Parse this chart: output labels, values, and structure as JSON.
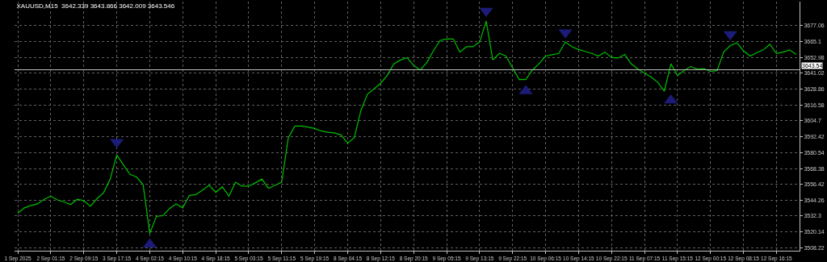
{
  "chart_data": {
    "type": "line",
    "title": "XAUUSD,M15  3642.339 3643.866 3642.009 3643.546",
    "grid": true,
    "marker": "none",
    "line_style": "solid",
    "categories": [
      "1 Sep 2025",
      null,
      null,
      null,
      null,
      "2 Sep 01:15",
      null,
      null,
      null,
      null,
      "2 Sep 09:15",
      null,
      null,
      null,
      null,
      "3 Sep 17:15",
      null,
      null,
      null,
      null,
      "4 Sep 02:15",
      null,
      null,
      null,
      null,
      "4 Sep 10:15",
      null,
      null,
      null,
      null,
      "4 Sep 18:15",
      null,
      null,
      null,
      null,
      "5 Sep 03:15",
      null,
      null,
      null,
      null,
      "5 Sep 11:15",
      null,
      null,
      null,
      null,
      "5 Sep 19:15",
      null,
      null,
      null,
      null,
      "8 Sep 04:15",
      null,
      null,
      null,
      null,
      "8 Sep 12:15",
      null,
      null,
      null,
      null,
      "8 Sep 20:15",
      null,
      null,
      null,
      null,
      "9 Sep 05:15",
      null,
      null,
      null,
      null,
      "9 Sep 13:15",
      null,
      null,
      null,
      null,
      "9 Sep 22:15",
      null,
      null,
      null,
      null,
      "10 Sep 06:15",
      null,
      null,
      null,
      null,
      "10 Sep 14:15",
      null,
      null,
      null,
      null,
      "10 Sep 22:15",
      null,
      null,
      null,
      null,
      "11 Sep 07:15",
      null,
      null,
      null,
      null,
      "11 Sep 15:15",
      null,
      null,
      null,
      null,
      "12 Sep 00:15",
      null,
      null,
      null,
      null,
      "12 Sep 08:15",
      null,
      null,
      null,
      null,
      "12 Sep 16:15",
      null,
      null,
      null
    ],
    "ylim": [
      3505.9,
      3695.4
    ],
    "yticks": [
      3508.22,
      3520.14,
      3532.3,
      3544.26,
      3556.42,
      3568.38,
      3580.54,
      3592.42,
      3604.7,
      3616.58,
      3628.86,
      3641.02,
      3652.98,
      3665.1,
      3677.06
    ],
    "ref_lines": [
      {
        "axis": "y",
        "value": 3643.54,
        "label": "3643.54",
        "color": "#c0c0c0"
      }
    ],
    "series": [
      {
        "color": "#00c000",
        "values": [
          3534.4,
          3538.5,
          3540.3,
          3541.5,
          3545.0,
          3547.4,
          3544.5,
          3543.0,
          3541.0,
          3545.0,
          3544.0,
          3539.7,
          3545.6,
          3550.0,
          3560.4,
          3578.8,
          3571.1,
          3564.0,
          3562.0,
          3556.0,
          3519.0,
          3532.0,
          3532.6,
          3538.0,
          3541.5,
          3538.5,
          3548.0,
          3548.6,
          3552.1,
          3555.7,
          3550.3,
          3554.5,
          3547.4,
          3558.0,
          3555.0,
          3555.0,
          3557.5,
          3560.4,
          3553.3,
          3555.7,
          3558.0,
          3591.8,
          3600.7,
          3600.7,
          3600.0,
          3598.9,
          3597.0,
          3596.0,
          3595.5,
          3594.0,
          3587.7,
          3592.0,
          3612.5,
          3625.0,
          3629.0,
          3633.3,
          3639.2,
          3648.1,
          3651.0,
          3652.8,
          3646.9,
          3643.3,
          3649.0,
          3658.0,
          3665.8,
          3667.0,
          3667.0,
          3657.0,
          3661.1,
          3661.1,
          3664.7,
          3680.6,
          3651.0,
          3656.0,
          3654.0,
          3645.0,
          3636.2,
          3636.2,
          3643.3,
          3648.1,
          3654.0,
          3655.0,
          3656.0,
          3664.7,
          3661.1,
          3659.0,
          3657.5,
          3656.0,
          3654.0,
          3657.0,
          3653.0,
          3652.5,
          3655.2,
          3648.0,
          3644.0,
          3641.0,
          3638.0,
          3634.0,
          3627.3,
          3648.1,
          3639.2,
          3643.0,
          3646.0,
          3644.0,
          3644.5,
          3642.2,
          3643.0,
          3657.0,
          3662.0,
          3664.0,
          3658.0,
          3654.0,
          3656.5,
          3658.7,
          3662.9,
          3656.0,
          3657.0,
          3658.7,
          3655.2
        ]
      },
      {
        "type": "scatter",
        "marker": "triangle",
        "color": "#1c1c78",
        "values": [
          null,
          null,
          null,
          null,
          null,
          null,
          null,
          null,
          null,
          null,
          null,
          null,
          null,
          null,
          null,
          3588.5,
          null,
          null,
          null,
          null,
          null,
          null,
          null,
          null,
          null,
          null,
          null,
          null,
          null,
          null,
          null,
          null,
          null,
          null,
          null,
          null,
          null,
          null,
          null,
          null,
          null,
          null,
          null,
          null,
          null,
          null,
          null,
          null,
          null,
          null,
          null,
          null,
          null,
          null,
          null,
          null,
          null,
          null,
          null,
          null,
          null,
          null,
          null,
          null,
          null,
          null,
          null,
          null,
          null,
          null,
          null,
          3688.3,
          null,
          null,
          null,
          null,
          null,
          null,
          null,
          null,
          null,
          null,
          null,
          3672.0,
          null,
          null,
          null,
          null,
          null,
          null,
          null,
          null,
          null,
          null,
          null,
          null,
          null,
          null,
          null,
          null,
          null,
          null,
          null,
          null,
          null,
          null,
          null,
          null,
          3670.6,
          null,
          null,
          null,
          null,
          null,
          null,
          null,
          null,
          null,
          null
        ]
      },
      {
        "type": "scatter",
        "marker": "triangle",
        "color": "#1c1c78",
        "values": [
          null,
          null,
          null,
          null,
          null,
          null,
          null,
          null,
          null,
          null,
          null,
          null,
          null,
          null,
          null,
          null,
          null,
          null,
          null,
          null,
          3510.6,
          null,
          null,
          null,
          null,
          null,
          null,
          null,
          null,
          null,
          null,
          null,
          null,
          null,
          null,
          null,
          null,
          null,
          null,
          null,
          null,
          null,
          null,
          null,
          null,
          null,
          null,
          null,
          null,
          null,
          null,
          null,
          null,
          null,
          null,
          null,
          null,
          null,
          null,
          null,
          null,
          null,
          null,
          null,
          null,
          null,
          null,
          null,
          null,
          null,
          null,
          null,
          null,
          null,
          null,
          null,
          null,
          3627.3,
          null,
          null,
          null,
          null,
          null,
          null,
          null,
          null,
          null,
          null,
          null,
          null,
          null,
          null,
          null,
          null,
          null,
          null,
          null,
          null,
          null,
          3620.2,
          null,
          null,
          null,
          null,
          null,
          null,
          null,
          null,
          null,
          null,
          null,
          null,
          null,
          null,
          null,
          null,
          null,
          null,
          null
        ]
      }
    ]
  }
}
